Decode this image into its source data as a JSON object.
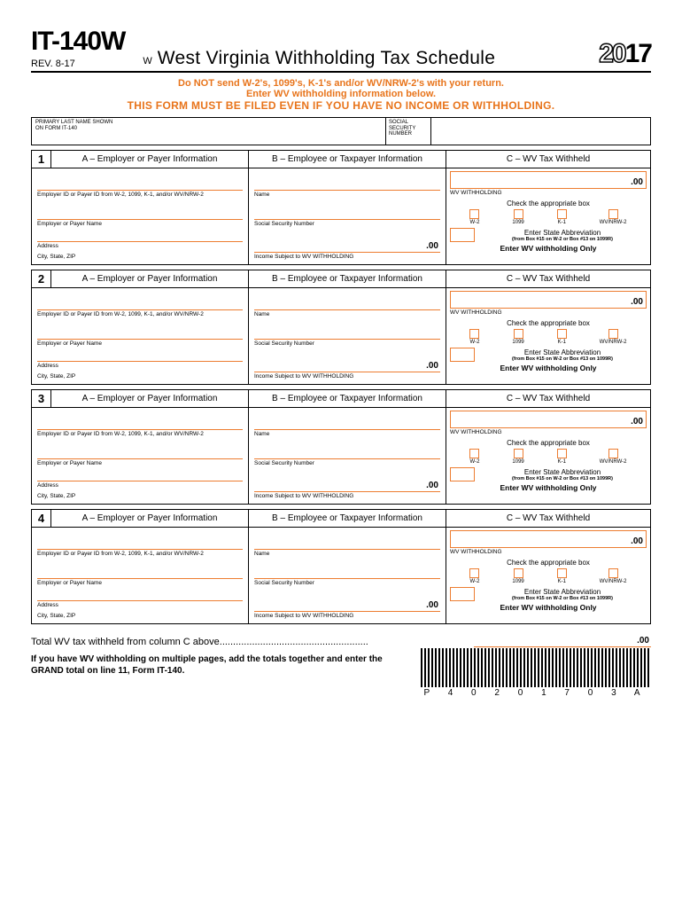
{
  "header": {
    "form_code": "IT-140W",
    "rev": "REV. 8-17",
    "w": "W",
    "title": "West Virginia Withholding Tax Schedule",
    "year_outline": "20",
    "year_bold": "17"
  },
  "warnings": {
    "line1": "Do NOT send W-2's, 1099's, K-1's and/or WV/NRW-2's with your return.",
    "line2": "Enter WV withholding information below.",
    "line3": "THIS FORM MUST BE FILED EVEN IF YOU HAVE NO INCOME OR WITHHOLDING."
  },
  "name_row": {
    "primary": "PRIMARY LAST NAME SHOWN ON FORM IT-140",
    "ssn_label": "SOCIAL SECURITY NUMBER"
  },
  "section_labels": {
    "col_a": "A – Employer or Payer Information",
    "col_b": "B – Employee or Taxpayer Information",
    "col_c": "C – WV Tax Withheld",
    "employer_id": "Employer ID or Payer ID from W-2, 1099, K-1, and/or WV/NRW-2",
    "employer_name": "Employer or Payer Name",
    "address": "Address",
    "city": "City, State, ZIP",
    "name": "Name",
    "ssn": "Social Security Number",
    "income": "Income Subject to WV WITHHOLDING",
    "wv_wh": "WV WITHHOLDING",
    "check": "Check the appropriate box",
    "boxes": [
      "W-2",
      "1099",
      "K-1",
      "WV/NRW-2"
    ],
    "state_abbr": "Enter State Abbreviation",
    "state_sub": "(from Box #15 on W-2 or Box #13 on 1099R)",
    "enter_only": "Enter WV withholding Only",
    "amt": ".00"
  },
  "sections": [
    {
      "num": "1"
    },
    {
      "num": "2"
    },
    {
      "num": "3"
    },
    {
      "num": "4"
    }
  ],
  "total": {
    "text": "Total WV tax withheld from column C above",
    "amt": ".00"
  },
  "note": "If you have WV withholding on multiple pages, add the totals together and enter the GRAND total on line 11, Form IT-140.",
  "barcode": "P 4 0 2 0 1 7 0 3 A"
}
